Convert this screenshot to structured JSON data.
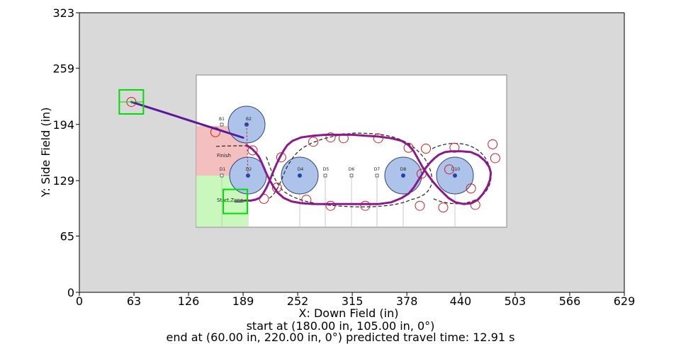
{
  "chart_data": {
    "type": "line",
    "title": "",
    "xlabel": "X: Down Field (in)",
    "ylabel": "Y: Side Field (in)",
    "xlim": [
      0,
      629
    ],
    "ylim": [
      0,
      323
    ],
    "xticks": [
      0,
      63,
      126,
      189,
      252,
      315,
      378,
      440,
      503,
      566,
      629
    ],
    "yticks": [
      0,
      65,
      129,
      194,
      259,
      323
    ],
    "grid": false,
    "background_color": "#d9d9d9",
    "series": [
      {
        "color": "#8b1a8b",
        "x": [
          180,
          183,
          187,
          192,
          198,
          203,
          208,
          212,
          216,
          220,
          224,
          228,
          232,
          236,
          240,
          246,
          256,
          270,
          285,
          300,
          315,
          330,
          345,
          360,
          372,
          380,
          386,
          391,
          396,
          402,
          408,
          414,
          420,
          426,
          434,
          444,
          453,
          460,
          466,
          471,
          474,
          475,
          473,
          468,
          461,
          452,
          441,
          430,
          422,
          415,
          410,
          405,
          400,
          396,
          391,
          386,
          380,
          372,
          360,
          345,
          330,
          315,
          300,
          285,
          270,
          256,
          245,
          236,
          229,
          224,
          220,
          216,
          213,
          210,
          207,
          203,
          199,
          193
        ],
        "y": [
          105,
          105,
          105,
          106,
          106,
          107,
          109,
          114,
          121,
          130,
          140,
          149,
          157,
          164,
          170,
          175,
          179,
          181,
          182,
          182,
          182,
          181,
          180,
          178,
          175,
          170,
          163,
          154,
          145,
          136,
          128,
          121,
          115,
          109,
          104,
          102,
          103,
          107,
          114,
          122,
          130,
          138,
          145,
          152,
          158,
          162,
          163,
          163,
          162,
          159,
          155,
          150,
          144,
          137,
          129,
          121,
          114,
          109,
          104,
          102,
          102,
          102,
          102,
          102,
          102,
          103,
          105,
          109,
          115,
          122,
          129,
          137,
          144,
          151,
          157,
          162,
          166,
          170
        ]
      },
      {
        "color": "#5a189a",
        "x": [
          60,
          80,
          100,
          120,
          140,
          160,
          175,
          189
        ],
        "y": [
          220,
          213.6,
          207.2,
          200.8,
          194.4,
          188.0,
          183.2,
          178.7
        ]
      }
    ],
    "target_markers": {
      "shape": "open circle",
      "color": "#cc2222",
      "x": [
        60,
        157,
        200,
        213,
        233,
        228,
        262,
        270,
        290,
        305,
        290,
        345,
        330,
        380,
        393,
        400,
        395,
        420,
        433,
        457,
        477,
        480,
        452,
        427
      ],
      "y": [
        220,
        185,
        164,
        108,
        156,
        121,
        107,
        174,
        100,
        178,
        179,
        178,
        100,
        167,
        100,
        166,
        137,
        98,
        167,
        101,
        171,
        155,
        120,
        142
      ]
    },
    "start_end_boxes": {
      "color": "#00dd00",
      "start": {
        "x": 180,
        "y": 105
      },
      "end": {
        "x": 60,
        "y": 220
      }
    },
    "field_labels": {
      "markers": [
        "B1",
        "B2",
        "D1",
        "D2",
        "D4",
        "D5",
        "D6",
        "D7",
        "D8",
        "D10"
      ],
      "finish": "Finish",
      "start_zone": "Start Zone"
    }
  },
  "captions": {
    "line1": "start at (180.00 in, 105.00 in, 0°)",
    "line2": "end at (60.00 in, 220.00 in, 0°) predicted travel time: 12.91 s"
  }
}
